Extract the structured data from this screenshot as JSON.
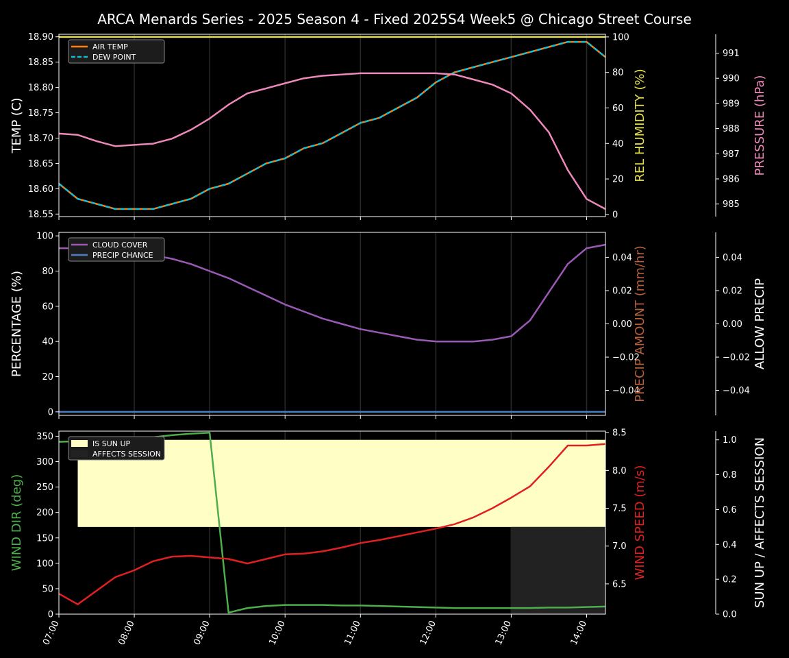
{
  "chart_data": {
    "title": "ARCA Menards Series - 2025 Season 4 - Fixed 2025S4 Week5 @ Chicago Street Course",
    "x_ticks": [
      "07:00",
      "08:00",
      "09:00",
      "10:00",
      "11:00",
      "12:00",
      "13:00",
      "14:00"
    ],
    "x_range": [
      0,
      7.25
    ],
    "panels": [
      {
        "type": "line",
        "ylabel": "TEMP (C)",
        "ylim": [
          18.545,
          18.905
        ],
        "y_ticks": [
          18.55,
          18.6,
          18.65,
          18.7,
          18.75,
          18.8,
          18.85,
          18.9
        ],
        "right_axes": [
          {
            "label": "REL HUMIDITY (%)",
            "color": "#e5e04a",
            "ylim": [
              -1.2,
              101.5
            ],
            "ticks": [
              0,
              20,
              40,
              60,
              80,
              100
            ]
          },
          {
            "label": "PRESSURE (hPa)",
            "color": "#ee88bb",
            "ylim": [
              984.5,
              991.75
            ],
            "ticks": [
              985,
              986,
              987,
              988,
              989,
              990,
              991
            ]
          }
        ],
        "legend": [
          "AIR TEMP",
          "DEW POINT"
        ],
        "series": [
          {
            "name": "AIR TEMP",
            "axis": "left",
            "color": "#ff7f0e",
            "style": "solid",
            "x": [
              0,
              0.25,
              0.5,
              0.75,
              1,
              1.25,
              1.5,
              1.75,
              2,
              2.25,
              2.5,
              2.75,
              3,
              3.25,
              3.5,
              3.75,
              4,
              4.25,
              4.5,
              4.75,
              5,
              5.25,
              5.5,
              5.75,
              6,
              6.25,
              6.5,
              6.75,
              7,
              7.25
            ],
            "values": [
              18.61,
              18.58,
              18.57,
              18.56,
              18.56,
              18.56,
              18.57,
              18.58,
              18.6,
              18.61,
              18.63,
              18.65,
              18.66,
              18.68,
              18.69,
              18.71,
              18.73,
              18.74,
              18.76,
              18.78,
              18.81,
              18.83,
              18.84,
              18.85,
              18.86,
              18.87,
              18.88,
              18.89,
              18.89,
              18.86
            ]
          },
          {
            "name": "DEW POINT",
            "axis": "left",
            "color": "#17becf",
            "style": "dashed",
            "x": [
              0,
              0.25,
              0.5,
              0.75,
              1,
              1.25,
              1.5,
              1.75,
              2,
              2.25,
              2.5,
              2.75,
              3,
              3.25,
              3.5,
              3.75,
              4,
              4.25,
              4.5,
              4.75,
              5,
              5.25,
              5.5,
              5.75,
              6,
              6.25,
              6.5,
              6.75,
              7,
              7.25
            ],
            "values": [
              18.61,
              18.58,
              18.57,
              18.56,
              18.56,
              18.56,
              18.57,
              18.58,
              18.6,
              18.61,
              18.63,
              18.65,
              18.66,
              18.68,
              18.69,
              18.71,
              18.73,
              18.74,
              18.76,
              18.78,
              18.81,
              18.83,
              18.84,
              18.85,
              18.86,
              18.87,
              18.88,
              18.89,
              18.89,
              18.86
            ]
          },
          {
            "name": "REL HUMIDITY",
            "axis": "right1",
            "color": "#e5e04a",
            "style": "solid",
            "x": [
              0,
              7.25
            ],
            "values": [
              100,
              100
            ]
          },
          {
            "name": "PRESSURE",
            "axis": "right2",
            "color": "#ee88bb",
            "style": "solid",
            "x": [
              0,
              0.25,
              0.5,
              0.75,
              1,
              1.25,
              1.5,
              1.75,
              2,
              2.25,
              2.5,
              2.75,
              3,
              3.25,
              3.5,
              3.75,
              4,
              4.25,
              4.5,
              4.75,
              5,
              5.25,
              5.5,
              5.75,
              6,
              6.25,
              6.5,
              6.75,
              7,
              7.25
            ],
            "values": [
              987.8,
              987.75,
              987.5,
              987.3,
              987.35,
              987.4,
              987.6,
              987.95,
              988.4,
              988.95,
              989.4,
              989.6,
              989.8,
              990.0,
              990.1,
              990.15,
              990.2,
              990.2,
              990.2,
              990.2,
              990.2,
              990.15,
              989.95,
              989.75,
              989.4,
              988.75,
              987.85,
              986.35,
              985.2,
              984.8
            ]
          }
        ]
      },
      {
        "type": "line",
        "ylabel": "PERCENTAGE (%)",
        "ylim": [
          -2,
          102
        ],
        "y_ticks": [
          0,
          20,
          40,
          60,
          80,
          100
        ],
        "right_axes": [
          {
            "label": "PRECIP AMOUNT (mm/hr)",
            "color": "#b5603a",
            "ylim": [
              -0.055,
              0.055
            ],
            "ticks": [
              -0.04,
              -0.02,
              0.0,
              0.02,
              0.04
            ],
            "tick_labels": [
              "−0.04",
              "−0.02",
              "0.00",
              "0.02",
              "0.04"
            ]
          },
          {
            "label": "ALLOW PRECIP",
            "color": "#ffffff",
            "ylim": [
              -0.055,
              0.055
            ],
            "ticks": [
              -0.04,
              -0.02,
              0.0,
              0.02,
              0.04
            ],
            "tick_labels": [
              "−0.04",
              "−0.02",
              "0.00",
              "0.02",
              "0.04"
            ]
          }
        ],
        "legend": [
          "CLOUD COVER",
          "PRECIP CHANCE"
        ],
        "series": [
          {
            "name": "CLOUD COVER",
            "axis": "left",
            "color": "#9b59b6",
            "style": "solid",
            "x": [
              0,
              0.25,
              0.5,
              0.75,
              1,
              1.25,
              1.5,
              1.75,
              2,
              2.25,
              2.5,
              2.75,
              3,
              3.25,
              3.5,
              3.75,
              4,
              4.25,
              4.5,
              4.75,
              5,
              5.25,
              5.5,
              5.75,
              6,
              6.25,
              6.5,
              6.75,
              7,
              7.25
            ],
            "values": [
              93,
              93,
              92,
              91,
              90,
              89,
              87,
              84,
              80,
              76,
              71,
              66,
              61,
              57,
              53,
              50,
              47,
              45,
              43,
              41,
              40,
              40,
              40,
              41,
              43,
              52,
              68,
              84,
              93,
              95
            ]
          },
          {
            "name": "PRECIP CHANCE",
            "axis": "left",
            "color": "#4a7fc1",
            "style": "solid",
            "x": [
              0,
              7.25
            ],
            "values": [
              0,
              0
            ]
          }
        ]
      },
      {
        "type": "line",
        "ylabel": "WIND DIR (deg)",
        "ylim": [
          0,
          360
        ],
        "y_ticks": [
          0,
          50,
          100,
          150,
          200,
          250,
          300,
          350
        ],
        "right_axes": [
          {
            "label": "WIND SPEED (m/s)",
            "color": "#e02020",
            "ylim": [
              6.1,
              8.52
            ],
            "ticks": [
              6.5,
              7.0,
              7.5,
              8.0,
              8.5
            ],
            "tick_labels": [
              "6.5",
              "7.0",
              "7.5",
              "8.0",
              "8.5"
            ]
          },
          {
            "label": "SUN UP / AFFECTS SESSION",
            "color": "#ffffff",
            "ylim": [
              0,
              1.05
            ],
            "ticks": [
              0,
              0.2,
              0.4,
              0.6,
              0.8,
              1.0
            ],
            "tick_labels": [
              "0.0",
              "0.2",
              "0.4",
              "0.6",
              "0.8",
              "1.0"
            ]
          }
        ],
        "legend": [
          "IS SUN UP",
          "AFFECTS SESSION"
        ],
        "sun_up": {
          "x_start": 0.25,
          "x_end": 7.25,
          "value": 1.0,
          "color": "#ffffc5"
        },
        "affects_session": {
          "x_start": 6.0,
          "x_end": 7.25,
          "value": 0.5,
          "color": "#222222"
        },
        "series": [
          {
            "name": "WIND DIR",
            "axis": "left",
            "color": "#4cae4c",
            "style": "solid",
            "x": [
              0,
              0.25,
              0.5,
              0.75,
              1,
              1.25,
              1.5,
              1.75,
              2,
              2.25,
              2.5,
              2.75,
              3,
              3.25,
              3.5,
              3.75,
              4,
              4.25,
              4.5,
              4.75,
              5,
              5.25,
              5.5,
              5.75,
              6,
              6.25,
              6.5,
              6.75,
              7,
              7.25
            ],
            "values": [
              339,
              340,
              341,
              343,
              345,
              348,
              352,
              355,
              357,
              3,
              12,
              16,
              18,
              18,
              18,
              17,
              17,
              16,
              15,
              14,
              13,
              12,
              12,
              12,
              12,
              12,
              13,
              13,
              14,
              15
            ]
          },
          {
            "name": "WIND SPEED",
            "axis": "right1",
            "color": "#e02020",
            "style": "solid",
            "x": [
              0,
              0.25,
              0.5,
              0.75,
              1,
              1.25,
              1.5,
              1.75,
              2,
              2.25,
              2.5,
              2.75,
              3,
              3.25,
              3.5,
              3.75,
              4,
              4.25,
              4.5,
              4.75,
              5,
              5.25,
              5.5,
              5.75,
              6,
              6.25,
              6.5,
              6.75,
              7,
              7.25
            ],
            "values": [
              6.37,
              6.23,
              6.41,
              6.59,
              6.68,
              6.8,
              6.86,
              6.87,
              6.85,
              6.83,
              6.77,
              6.83,
              6.89,
              6.9,
              6.93,
              6.98,
              7.04,
              7.08,
              7.13,
              7.18,
              7.23,
              7.29,
              7.38,
              7.5,
              7.64,
              7.79,
              8.05,
              8.33,
              8.33,
              8.35
            ]
          }
        ]
      }
    ]
  }
}
